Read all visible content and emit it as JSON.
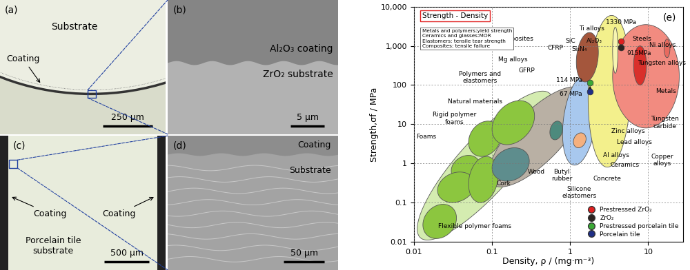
{
  "panels": [
    {
      "label": "(a)",
      "texts": [
        "Substrate",
        "Coating"
      ],
      "scale_bar": "250 μm"
    },
    {
      "label": "(b)",
      "texts": [
        "Al₂O₃ coating",
        "ZrO₂ substrate"
      ],
      "scale_bar": "5 μm"
    },
    {
      "label": "(c)",
      "texts": [
        "Coating",
        "Coating",
        "Porcelain tile\nsubstrate"
      ],
      "scale_bar": "500 μm"
    },
    {
      "label": "(d)",
      "texts": [
        "Coating",
        "Substrate"
      ],
      "scale_bar": "50 μm"
    }
  ],
  "chart_data": {
    "type": "scatter",
    "title": "Strength - Density",
    "panel_label": "(e)",
    "note": [
      "Metals and polymers:yield strength",
      "Ceramics and glasses:MOR",
      "Elastomers: tensile tear strength",
      "Composites: tensile failure"
    ],
    "x_label": "Density, ρ / (mg·m⁻³)",
    "y_label": "Strength,σf / MPa",
    "log": true,
    "grid": true,
    "legend": "lower right",
    "xlim": [
      0.01,
      28
    ],
    "ylim": [
      0.01,
      10000
    ],
    "xticks": [
      0.01,
      0.1,
      1,
      10
    ],
    "yticks": [
      0.01,
      0.1,
      1,
      10,
      100,
      {
        "value": 1000,
        "label": "1,000"
      },
      {
        "value": 10000,
        "label": "10,000"
      }
    ],
    "series": [
      {
        "name": "Prestressed ZrO₂",
        "color": "#e02020",
        "marker": "circle",
        "x": [
          4.5
        ],
        "values": [
          1330
        ],
        "value_labels": [
          "1330 MPa"
        ]
      },
      {
        "name": "ZrO₂",
        "color": "#2b2320",
        "marker": "circle",
        "x": [
          4.5
        ],
        "values": [
          915
        ],
        "value_labels": [
          "915MPa"
        ]
      },
      {
        "name": "Prestressed porcelain tile",
        "color": "#3aa935",
        "marker": "circle",
        "x": [
          1.8
        ],
        "values": [
          114
        ],
        "value_labels": [
          "114 MPa"
        ]
      },
      {
        "name": "Porcelain tile",
        "color": "#1f2f86",
        "marker": "circle",
        "x": [
          1.8
        ],
        "values": [
          67
        ],
        "value_labels": [
          "67 MPa"
        ]
      }
    ],
    "regions": [
      {
        "x": [
          0.011,
          0.6
        ],
        "y": [
          0.011,
          70
        ],
        "correlation": 0.85,
        "color": "#d4ecb0"
      },
      {
        "x": [
          0.09,
          1.6
        ],
        "y": [
          0.25,
          90
        ],
        "correlation": 0.75,
        "color": "#b9b0a4"
      },
      {
        "x": [
          0.8,
          2.2
        ],
        "y": [
          0.9,
          180
        ],
        "correlation": 0.3,
        "color": "#a8c8ee"
      },
      {
        "x": [
          1.7,
          6.0
        ],
        "y": [
          0.8,
          6000
        ],
        "correlation": 0.1,
        "color": "#f3f08c"
      },
      {
        "x": [
          3.5,
          25
        ],
        "y": [
          8,
          3500
        ],
        "correlation": 0.0,
        "color": "#f28b80"
      },
      {
        "x": [
          1.2,
          2.3
        ],
        "y": [
          120,
          2200
        ],
        "correlation": 0.2,
        "color": "#a4563c"
      },
      {
        "x": [
          0.03,
          0.07
        ],
        "y": [
          0.35,
          1.6
        ],
        "correlation": 0.2,
        "color": "#8cc63f"
      },
      {
        "x": [
          0.05,
          0.13
        ],
        "y": [
          1.5,
          12
        ],
        "correlation": 0.2,
        "color": "#8cc63f"
      },
      {
        "x": [
          0.1,
          0.35
        ],
        "y": [
          3,
          40
        ],
        "correlation": 0.3,
        "color": "#8cc63f"
      },
      {
        "x": [
          0.013,
          0.035
        ],
        "y": [
          0.012,
          0.09
        ],
        "correlation": 0.2,
        "color": "#8cc63f"
      },
      {
        "x": [
          0.02,
          0.06
        ],
        "y": [
          0.1,
          0.6
        ],
        "correlation": 0.2,
        "color": "#8cc63f"
      },
      {
        "x": [
          0.05,
          0.12
        ],
        "y": [
          0.1,
          1.5
        ],
        "correlation": 0.2,
        "color": "#8cc63f"
      },
      {
        "x": [
          0.1,
          0.3
        ],
        "y": [
          0.35,
          2.5
        ],
        "correlation": 0.2,
        "color": "#5e8d8d"
      },
      {
        "x": [
          0.55,
          0.8
        ],
        "y": [
          4,
          12
        ],
        "correlation": 0.2,
        "color": "#4d8a7d"
      },
      {
        "x": [
          1.1,
          1.6
        ],
        "y": [
          2.5,
          6
        ],
        "correlation": 0.2,
        "color": "#f5b07e"
      },
      {
        "x": [
          3.5,
          4.1
        ],
        "y": [
          200,
          3000
        ],
        "correlation": 0.0,
        "color": "#f7f5b0"
      },
      {
        "x": [
          6.5,
          9.5
        ],
        "y": [
          100,
          1000
        ],
        "correlation": 0.0,
        "color": "#d9302b"
      },
      {
        "x": [
          16,
          19
        ],
        "y": [
          500,
          1500
        ],
        "correlation": 0.0,
        "color": "#e86a5f"
      }
    ],
    "annotations": [
      {
        "text": "Composites",
        "x": 0.197,
        "y": 1500
      },
      {
        "text": "CFRP",
        "x": 0.65,
        "y": 890
      },
      {
        "text": "SiC",
        "x": 1.0,
        "y": 1320
      },
      {
        "text": "Si₃N₄",
        "x": 1.3,
        "y": 820
      },
      {
        "text": "Al₂O₃",
        "x": 2.05,
        "y": 1320
      },
      {
        "text": "Ti alloys",
        "x": 1.9,
        "y": 2750
      },
      {
        "text": "Steels",
        "x": 8.3,
        "y": 1500
      },
      {
        "text": "Ni alloys",
        "x": 15.4,
        "y": 1050
      },
      {
        "text": "Tungsten alloys",
        "x": 14.8,
        "y": 365
      },
      {
        "text": "Metals",
        "x": 17,
        "y": 69
      },
      {
        "text": "Tungsten\ncarbide",
        "x": 16.4,
        "y": 11
      },
      {
        "text": "Zinc alloys",
        "x": 5.5,
        "y": 6.5
      },
      {
        "text": "Lead alloys",
        "x": 6.7,
        "y": 3.5
      },
      {
        "text": "Copper\nalloys",
        "x": 15,
        "y": 1.2
      },
      {
        "text": "Al alloys",
        "x": 3.9,
        "y": 1.6
      },
      {
        "text": "Ceramics",
        "x": 5,
        "y": 0.9
      },
      {
        "text": "Concrete",
        "x": 3.0,
        "y": 0.4
      },
      {
        "text": "Silicone\nelastomers",
        "x": 1.3,
        "y": 0.18
      },
      {
        "text": "Butyl\nrubber",
        "x": 0.78,
        "y": 0.5
      },
      {
        "text": "Wood",
        "x": 0.37,
        "y": 0.6
      },
      {
        "text": "Cork",
        "x": 0.14,
        "y": 0.3
      },
      {
        "text": "Natural materials",
        "x": 0.06,
        "y": 38
      },
      {
        "text": "Polymers and\nelastomers",
        "x": 0.07,
        "y": 155
      },
      {
        "text": "GFRP",
        "x": 0.28,
        "y": 235
      },
      {
        "text": "Mg alloys",
        "x": 0.185,
        "y": 450
      },
      {
        "text": "Rigid polymer\nfoams",
        "x": 0.033,
        "y": 14
      },
      {
        "text": "Foams",
        "x": 0.0142,
        "y": 4.7
      },
      {
        "text": "Flexible polymer foams",
        "x": 0.06,
        "y": 0.025
      }
    ]
  }
}
